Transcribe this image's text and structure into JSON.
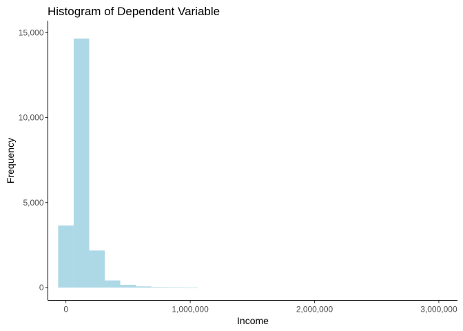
{
  "chart_data": {
    "type": "bar",
    "title": "Histogram of Dependent Variable",
    "xlabel": "Income",
    "ylabel": "Frequency",
    "xlim": [
      -145000,
      3150000
    ],
    "ylim": [
      -750,
      15700
    ],
    "x_ticks": [
      {
        "value": 0,
        "label": "0"
      },
      {
        "value": 1000000,
        "label": "1,000,000"
      },
      {
        "value": 2000000,
        "label": "2,000,000"
      },
      {
        "value": 3000000,
        "label": "3,000,000"
      }
    ],
    "y_ticks": [
      {
        "value": 0,
        "label": "0"
      },
      {
        "value": 5000,
        "label": "5,000"
      },
      {
        "value": 10000,
        "label": "10,000"
      },
      {
        "value": 15000,
        "label": "15,000"
      }
    ],
    "bin_width": 125000,
    "bins": [
      {
        "x": 0,
        "count": 3650
      },
      {
        "x": 125000,
        "count": 14650
      },
      {
        "x": 250000,
        "count": 2180
      },
      {
        "x": 375000,
        "count": 420
      },
      {
        "x": 500000,
        "count": 160
      },
      {
        "x": 625000,
        "count": 70
      },
      {
        "x": 750000,
        "count": 30
      },
      {
        "x": 875000,
        "count": 20
      },
      {
        "x": 1000000,
        "count": 10
      }
    ],
    "bar_color": "#ADD8E6",
    "grid": false
  }
}
